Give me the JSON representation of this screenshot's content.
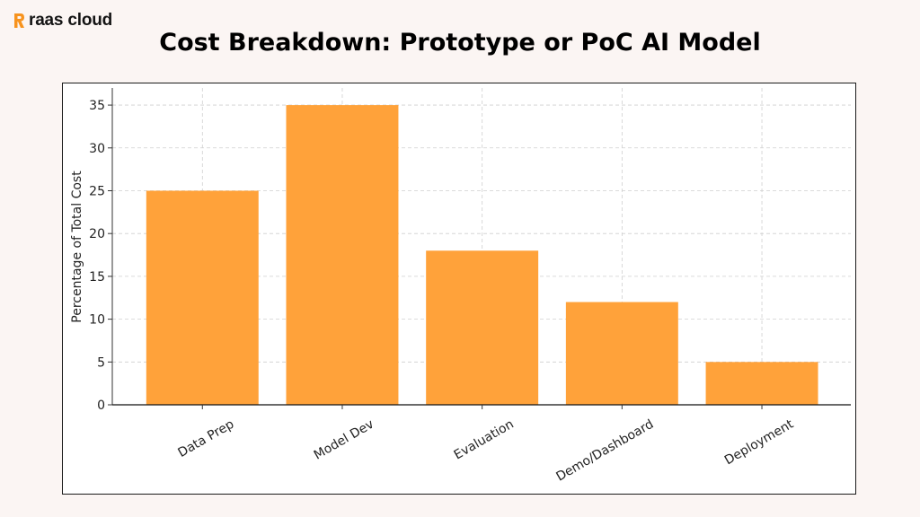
{
  "brand": {
    "name": "raas cloud",
    "accent_color": "#f7931e",
    "logo_icon": "brand-mark-icon"
  },
  "chart_data": {
    "type": "bar",
    "title": "Cost Breakdown: Prototype or PoC AI Model",
    "xlabel": "",
    "ylabel": "Percentage of Total Cost",
    "categories": [
      "Data Prep",
      "Model Dev",
      "Evaluation",
      "Demo/Dashboard",
      "Deployment"
    ],
    "values": [
      25,
      35,
      18,
      12,
      5
    ],
    "ylim": [
      0,
      37
    ],
    "yticks": [
      0,
      5,
      10,
      15,
      20,
      25,
      30,
      35
    ],
    "bar_color": "#ffa23a",
    "grid": true,
    "grid_style": "dashed",
    "xtick_rotation": -30,
    "legend": "none"
  }
}
